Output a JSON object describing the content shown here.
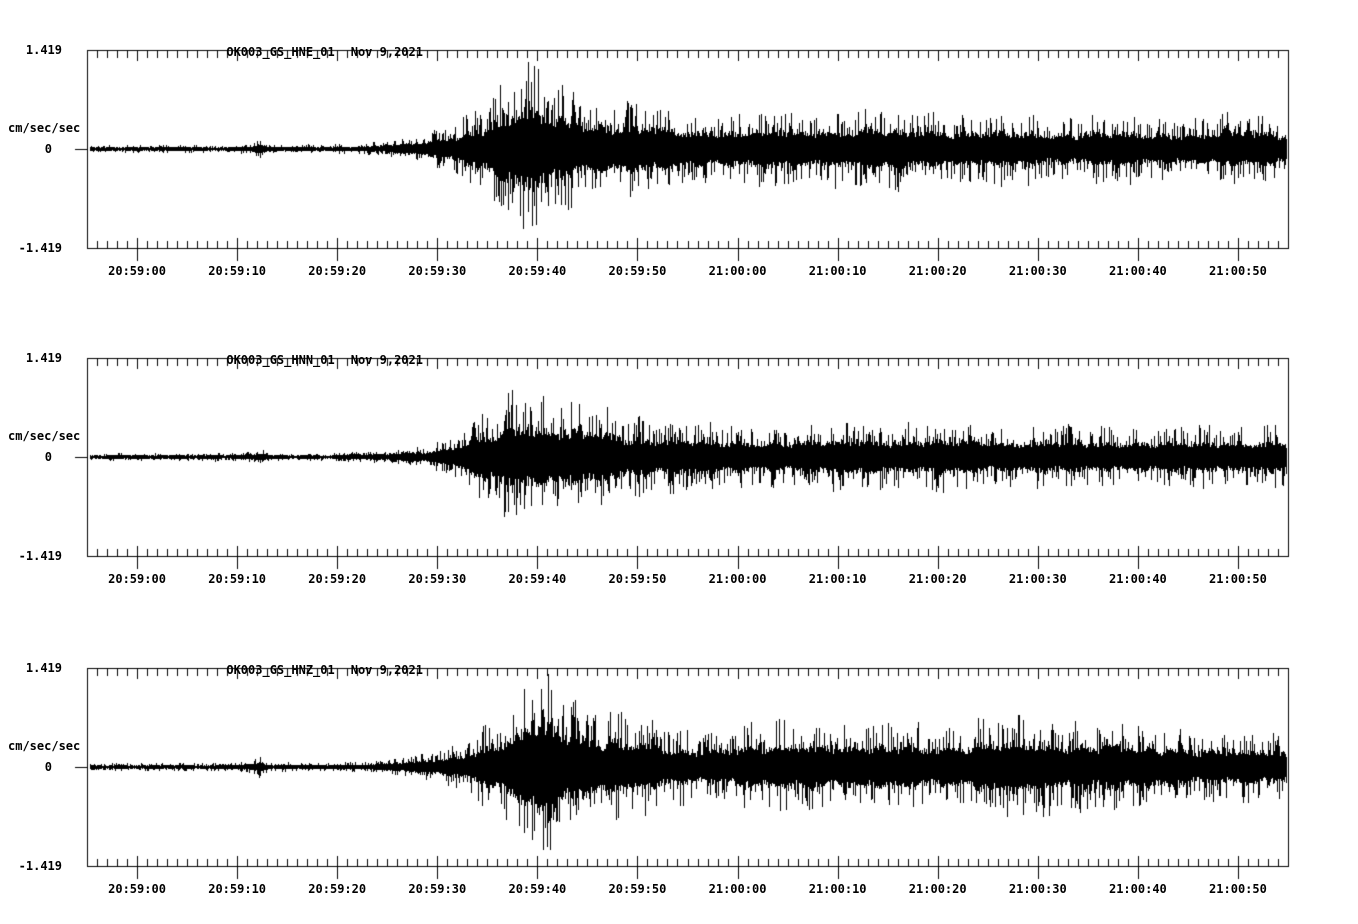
{
  "page": {
    "background": "#ffffff",
    "text_color": "#000000"
  },
  "chart_data": [
    {
      "type": "line",
      "subtype": "seismogram",
      "title": "OK003_GS_HNE_01",
      "date": "Nov 9,2021",
      "channel": "HNE",
      "ylabel": "cm/sec/sec",
      "ylim": [
        -1.419,
        1.419
      ],
      "ytick_labels": [
        "1.419",
        "0",
        "-1.419"
      ],
      "time_start": "20:58:55",
      "time_end": "21:00:55",
      "duration_s": 120,
      "x_tick_labels": [
        "20:59:00",
        "20:59:10",
        "20:59:20",
        "20:59:30",
        "20:59:40",
        "20:59:50",
        "21:00:00",
        "21:00:10",
        "21:00:20",
        "21:00:30",
        "21:00:40",
        "21:00:50"
      ],
      "x_major_interval_s": 10,
      "x_minor_interval_s": 1,
      "grid": false,
      "line_color": "#000000",
      "envelope_t_amp": [
        [
          0,
          0.06
        ],
        [
          14,
          0.06
        ],
        [
          16.5,
          0.08
        ],
        [
          17.2,
          0.18
        ],
        [
          18,
          0.07
        ],
        [
          24,
          0.06
        ],
        [
          28,
          0.09
        ],
        [
          31,
          0.13
        ],
        [
          33,
          0.18
        ],
        [
          35,
          0.26
        ],
        [
          37,
          0.42
        ],
        [
          39,
          0.62
        ],
        [
          41,
          0.88
        ],
        [
          43.5,
          1.19
        ],
        [
          45.5,
          1.02
        ],
        [
          48,
          0.86
        ],
        [
          51,
          0.73
        ],
        [
          55,
          0.63
        ],
        [
          60,
          0.56
        ],
        [
          65,
          0.51
        ],
        [
          70,
          0.54
        ],
        [
          76,
          0.58
        ],
        [
          82,
          0.55
        ],
        [
          88,
          0.51
        ],
        [
          95,
          0.48
        ],
        [
          102,
          0.47
        ],
        [
          108,
          0.45
        ],
        [
          114,
          0.48
        ],
        [
          120,
          0.46
        ]
      ],
      "seed": 11
    },
    {
      "type": "line",
      "subtype": "seismogram",
      "title": "OK003_GS_HNN_01",
      "date": "Nov 9,2021",
      "channel": "HNN",
      "ylabel": "cm/sec/sec",
      "ylim": [
        -1.419,
        1.419
      ],
      "ytick_labels": [
        "1.419",
        "0",
        "-1.419"
      ],
      "time_start": "20:58:55",
      "time_end": "21:00:55",
      "duration_s": 120,
      "x_tick_labels": [
        "20:59:00",
        "20:59:10",
        "20:59:20",
        "20:59:30",
        "20:59:40",
        "20:59:50",
        "21:00:00",
        "21:00:10",
        "21:00:20",
        "21:00:30",
        "21:00:40",
        "21:00:50"
      ],
      "x_major_interval_s": 10,
      "x_minor_interval_s": 1,
      "grid": false,
      "line_color": "#000000",
      "envelope_t_amp": [
        [
          0,
          0.06
        ],
        [
          14,
          0.06
        ],
        [
          16.8,
          0.08
        ],
        [
          17.5,
          0.14
        ],
        [
          18.3,
          0.06
        ],
        [
          24,
          0.06
        ],
        [
          28,
          0.08
        ],
        [
          31,
          0.12
        ],
        [
          34,
          0.18
        ],
        [
          36,
          0.26
        ],
        [
          38,
          0.44
        ],
        [
          40,
          0.64
        ],
        [
          42,
          0.88
        ],
        [
          43.5,
          1.04
        ],
        [
          45,
          0.93
        ],
        [
          47,
          0.81
        ],
        [
          50,
          0.71
        ],
        [
          54,
          0.61
        ],
        [
          58,
          0.53
        ],
        [
          63,
          0.47
        ],
        [
          68,
          0.45
        ],
        [
          73,
          0.47
        ],
        [
          79,
          0.51
        ],
        [
          85,
          0.47
        ],
        [
          91,
          0.45
        ],
        [
          97,
          0.43
        ],
        [
          104,
          0.45
        ],
        [
          110,
          0.43
        ],
        [
          116,
          0.45
        ],
        [
          120,
          0.44
        ]
      ],
      "seed": 22
    },
    {
      "type": "line",
      "subtype": "seismogram",
      "title": "OK003_GS_HNZ_01",
      "date": "Nov 9,2021",
      "channel": "HNZ",
      "ylabel": "cm/sec/sec",
      "ylim": [
        -1.419,
        1.419
      ],
      "ytick_labels": [
        "1.419",
        "0",
        "-1.419"
      ],
      "time_start": "20:58:55",
      "time_end": "21:00:55",
      "duration_s": 120,
      "x_tick_labels": [
        "20:59:00",
        "20:59:10",
        "20:59:20",
        "20:59:30",
        "20:59:40",
        "20:59:50",
        "21:00:00",
        "21:00:10",
        "21:00:20",
        "21:00:30",
        "21:00:40",
        "21:00:50"
      ],
      "x_major_interval_s": 10,
      "x_minor_interval_s": 1,
      "grid": false,
      "line_color": "#000000",
      "envelope_t_amp": [
        [
          0,
          0.06
        ],
        [
          14,
          0.06
        ],
        [
          16.6,
          0.1
        ],
        [
          17.3,
          0.17
        ],
        [
          18.1,
          0.07
        ],
        [
          23,
          0.06
        ],
        [
          27,
          0.08
        ],
        [
          30,
          0.11
        ],
        [
          33,
          0.16
        ],
        [
          36,
          0.26
        ],
        [
          38,
          0.42
        ],
        [
          40,
          0.62
        ],
        [
          42,
          0.82
        ],
        [
          44,
          1.12
        ],
        [
          45.2,
          1.4
        ],
        [
          46.5,
          1.16
        ],
        [
          48.5,
          1.06
        ],
        [
          51,
          0.86
        ],
        [
          54,
          0.71
        ],
        [
          57,
          0.59
        ],
        [
          61,
          0.51
        ],
        [
          65,
          0.56
        ],
        [
          69,
          0.61
        ],
        [
          74,
          0.63
        ],
        [
          79,
          0.59
        ],
        [
          84,
          0.63
        ],
        [
          89,
          0.67
        ],
        [
          94,
          0.71
        ],
        [
          99,
          0.66
        ],
        [
          104,
          0.61
        ],
        [
          109,
          0.56
        ],
        [
          114,
          0.49
        ],
        [
          120,
          0.46
        ]
      ],
      "seed": 33
    }
  ]
}
